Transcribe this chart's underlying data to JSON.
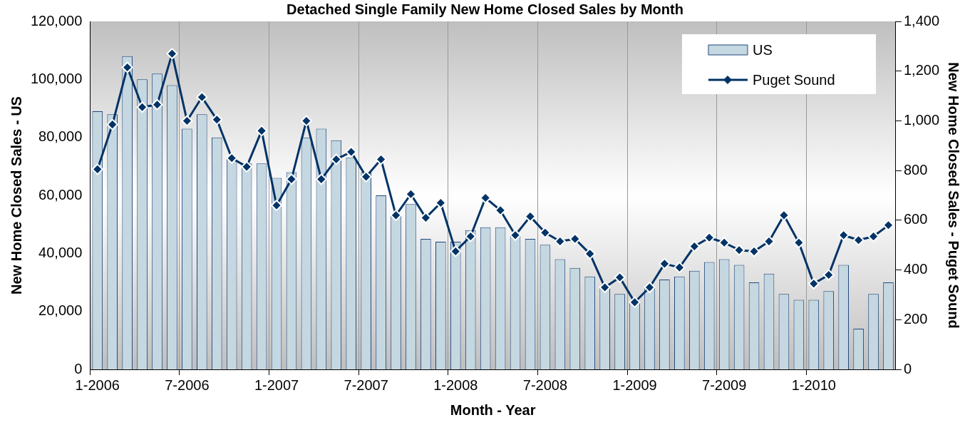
{
  "chart_data": {
    "type": "bar",
    "title": "Detached Single Family New Home Closed Sales by Month",
    "xlabel": "Month - Year",
    "ylabel": "New Home Closed Sales - US",
    "y2label": "New Home Closed Sales - Puget Sound",
    "categories": [
      "1-2006",
      null,
      null,
      null,
      null,
      null,
      "7-2006",
      null,
      null,
      null,
      null,
      null,
      "1-2007",
      null,
      null,
      null,
      null,
      null,
      "7-2007",
      null,
      null,
      null,
      null,
      null,
      "1-2008",
      null,
      null,
      null,
      null,
      null,
      "7-2008",
      null,
      null,
      null,
      null,
      null,
      "1-2009",
      null,
      null,
      null,
      null,
      null,
      "7-2009",
      null,
      null,
      null,
      null,
      null,
      "1-2010",
      null,
      null,
      null,
      null,
      null
    ],
    "series": [
      {
        "name": "US",
        "color": "#c5d7e0",
        "values": [
          89000,
          88000,
          108000,
          100000,
          102000,
          98000,
          83000,
          88000,
          80000,
          73000,
          71000,
          71000,
          66000,
          68000,
          80000,
          83000,
          79000,
          73000,
          68000,
          60000,
          53000,
          57000,
          45000,
          44000,
          44000,
          48000,
          49000,
          49000,
          46000,
          45000,
          43000,
          38000,
          35000,
          32000,
          28000,
          26000,
          23000,
          28000,
          31000,
          32000,
          34000,
          37000,
          38000,
          36000,
          30000,
          33000,
          26000,
          24000,
          24000,
          27000,
          36000,
          14000,
          26000,
          30000
        ]
      },
      {
        "name": "Puget Sound",
        "type": "line",
        "axis": "y2",
        "color": "#003366",
        "values": [
          805,
          985,
          1215,
          1055,
          1065,
          1270,
          1000,
          1095,
          1005,
          850,
          815,
          960,
          660,
          765,
          1000,
          765,
          845,
          875,
          775,
          845,
          620,
          705,
          610,
          670,
          475,
          535,
          690,
          640,
          540,
          615,
          550,
          515,
          525,
          465,
          330,
          370,
          270,
          330,
          425,
          410,
          495,
          530,
          510,
          480,
          475,
          515,
          620,
          510,
          345,
          380,
          540,
          520,
          535,
          580
        ]
      }
    ],
    "ylim": [
      0,
      120000
    ],
    "yticks": [
      0,
      {
        "value": 20000,
        "label": "20,000"
      },
      {
        "value": 40000,
        "label": "40,000"
      },
      {
        "value": 60000,
        "label": "60,000"
      },
      {
        "value": 80000,
        "label": "80,000"
      },
      {
        "value": 100000,
        "label": "100,000"
      },
      {
        "value": 120000,
        "label": "120,000"
      }
    ],
    "y2lim": [
      0,
      1400
    ],
    "y2ticks": [
      0,
      200,
      400,
      600,
      800,
      {
        "value": 1000,
        "label": "1,000"
      },
      {
        "value": 1200,
        "label": "1,200"
      },
      {
        "value": 1400,
        "label": "1,400"
      }
    ],
    "grid": "x",
    "legend": "top right",
    "marker": "diamond"
  }
}
